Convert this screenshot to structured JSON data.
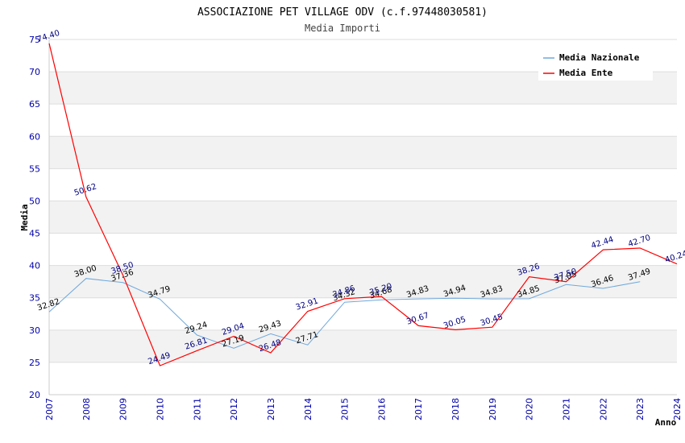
{
  "chart_data": {
    "type": "line",
    "title": "ASSOCIAZIONE PET VILLAGE ODV (c.f.97448030581)",
    "subtitle": "Media Importi",
    "xlabel": "Anno",
    "ylabel": "Media",
    "ylim": [
      20,
      75
    ],
    "yticks": [
      20,
      25,
      30,
      35,
      40,
      45,
      50,
      55,
      60,
      65,
      70,
      75
    ],
    "x": [
      "2007",
      "2008",
      "2009",
      "2010",
      "2011",
      "2012",
      "2013",
      "2014",
      "2015",
      "2016",
      "2017",
      "2018",
      "2019",
      "2020",
      "2021",
      "2022",
      "2023",
      "2024"
    ],
    "grid": true,
    "legend_position": "top-right",
    "series": [
      {
        "name": "Media Nazionale",
        "color": "#6fa8dc",
        "label_color": "#000000",
        "values": [
          32.82,
          38.0,
          37.36,
          34.79,
          29.24,
          27.19,
          29.43,
          27.71,
          34.32,
          34.68,
          34.83,
          34.94,
          34.83,
          34.85,
          37.05,
          36.46,
          37.49,
          null
        ],
        "labels": [
          "32.82",
          "38.00",
          "37.36",
          "34.79",
          "29.24",
          "27.19",
          "29.43",
          "27.71",
          "34.32",
          "34.68",
          "34.83",
          "34.94",
          "34.83",
          "34.85",
          "37.05",
          "36.46",
          "37.49",
          ""
        ]
      },
      {
        "name": "Media Ente",
        "color": "#ff0000",
        "label_color": "#000080",
        "values": [
          74.4,
          50.62,
          38.5,
          24.49,
          26.81,
          29.04,
          26.48,
          32.91,
          34.86,
          35.2,
          30.67,
          30.05,
          30.45,
          38.26,
          37.5,
          42.44,
          42.7,
          40.24
        ],
        "labels": [
          "74.40",
          "50.62",
          "38.50",
          "24.49",
          "26.81",
          "29.04",
          "26.48",
          "32.91",
          "34.86",
          "35.20",
          "30.67",
          "30.05",
          "30.45",
          "38.26",
          "37.50",
          "42.44",
          "42.70",
          "40.24"
        ]
      }
    ],
    "colors": {
      "band": "#f2f2f2",
      "grid": "#dddddd",
      "axis": "#cccccc"
    }
  }
}
